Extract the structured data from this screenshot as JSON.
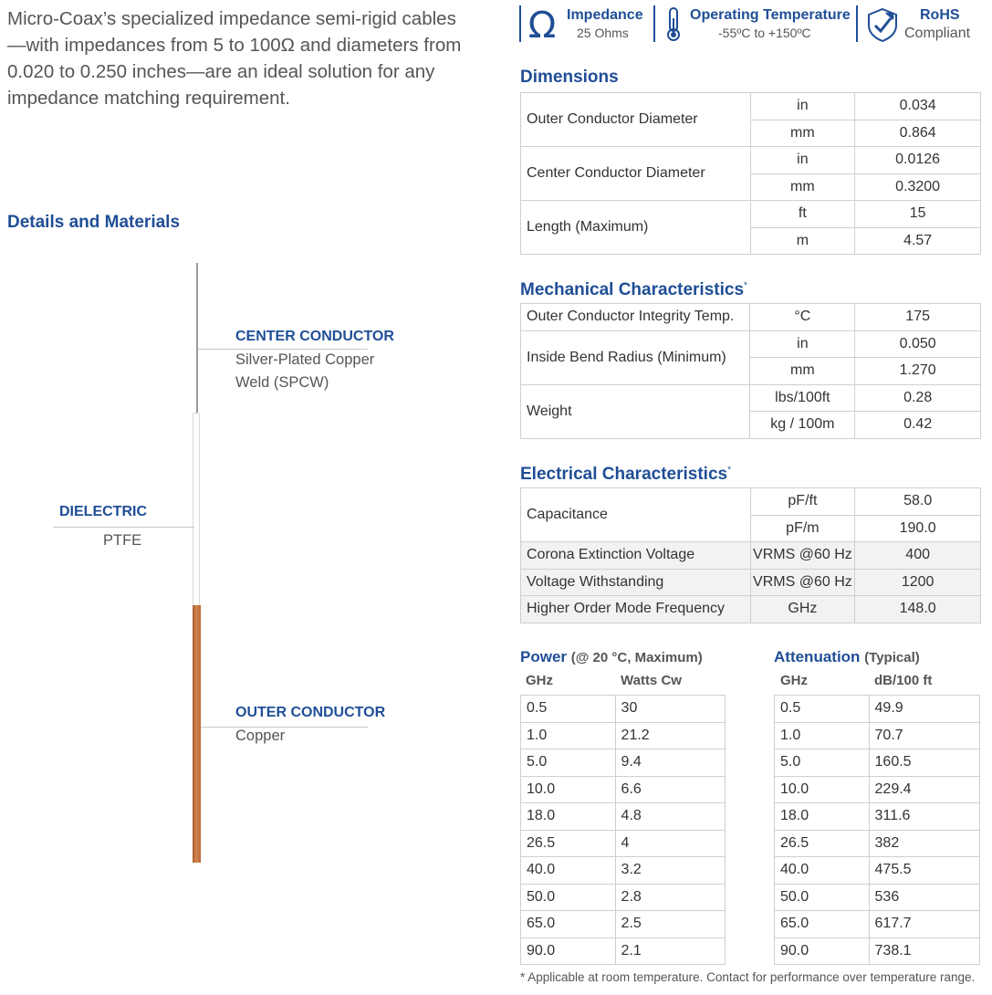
{
  "intro": "Micro-Coax’s specialized impedance semi-rigid cables—with impedances from 5 to 100Ω and diameters from 0.020 to 0.250 inches—are an ideal solution for any impedance matching requirement.",
  "badges": [
    {
      "title": "Impedance",
      "sub": "25 Ohms",
      "icon": "omega-icon"
    },
    {
      "title": "Operating Temperature",
      "sub": "-55ºC to +150ºC",
      "icon": "thermometer-icon"
    },
    {
      "title": "RoHS",
      "sub": "Compliant",
      "icon": "leaf-shield-icon"
    }
  ],
  "colors": {
    "brand_blue": "#1f4e96",
    "copper": "#c0703d"
  },
  "details": {
    "title": "Details and Materials",
    "center": {
      "label": "CENTER CONDUCTOR",
      "desc1": "Silver-Plated Copper",
      "desc2": "Weld (SPCW)"
    },
    "dielectric": {
      "label": "DIELECTRIC",
      "desc": "PTFE"
    },
    "outer": {
      "label": "OUTER CONDUCTOR",
      "desc": "Copper"
    }
  },
  "dimensions": {
    "title": "Dimensions",
    "rows": [
      [
        "Outer Conductor Diameter",
        "in",
        "0.034"
      ],
      [
        "",
        "mm",
        "0.864"
      ],
      [
        "Center Conductor Diameter",
        "in",
        "0.0126"
      ],
      [
        "",
        "mm",
        "0.3200"
      ],
      [
        "Length (Maximum)",
        "ft",
        "15"
      ],
      [
        "",
        "m",
        "4.57"
      ]
    ]
  },
  "mechanical": {
    "title": "Mechanical Characteristics",
    "mark": "*",
    "rows": [
      [
        "Outer Conductor Integrity Temp.",
        "°C",
        "175"
      ],
      [
        "Inside Bend Radius (Minimum)",
        "in",
        "0.050"
      ],
      [
        "",
        "mm",
        "1.270"
      ],
      [
        "Weight",
        "lbs/100ft",
        "0.28"
      ],
      [
        "",
        "kg / 100m",
        "0.42"
      ]
    ]
  },
  "electrical": {
    "title": "Electrical Characteristics",
    "mark": "*",
    "rows": [
      [
        "Capacitance",
        "pF/ft",
        "58.0"
      ],
      [
        "",
        "pF/m",
        "190.0"
      ],
      [
        "Corona Extinction Voltage",
        "VRMS @60 Hz",
        "400"
      ],
      [
        "Voltage Withstanding",
        "VRMS @60 Hz",
        "1200"
      ],
      [
        "Higher Order Mode Frequency",
        "GHz",
        "148.0"
      ]
    ]
  },
  "power": {
    "title": "Power",
    "note": "(@ 20 °C, Maximum)",
    "col1": "GHz",
    "col2": "Watts Cw",
    "rows": [
      [
        "0.5",
        "30"
      ],
      [
        "1.0",
        "21.2"
      ],
      [
        "5.0",
        "9.4"
      ],
      [
        "10.0",
        "6.6"
      ],
      [
        "18.0",
        "4.8"
      ],
      [
        "26.5",
        "4"
      ],
      [
        "40.0",
        "3.2"
      ],
      [
        "50.0",
        "2.8"
      ],
      [
        "65.0",
        "2.5"
      ],
      [
        "90.0",
        "2.1"
      ]
    ]
  },
  "attenuation": {
    "title": "Attenuation",
    "note": "(Typical)",
    "col1": "GHz",
    "col2": "dB/100 ft",
    "rows": [
      [
        "0.5",
        "49.9"
      ],
      [
        "1.0",
        "70.7"
      ],
      [
        "5.0",
        "160.5"
      ],
      [
        "10.0",
        "229.4"
      ],
      [
        "18.0",
        "311.6"
      ],
      [
        "26.5",
        "382"
      ],
      [
        "40.0",
        "475.5"
      ],
      [
        "50.0",
        "536"
      ],
      [
        "65.0",
        "617.7"
      ],
      [
        "90.0",
        "738.1"
      ]
    ]
  },
  "footnote": "* Applicable at room temperature. Contact for performance over temperature range."
}
